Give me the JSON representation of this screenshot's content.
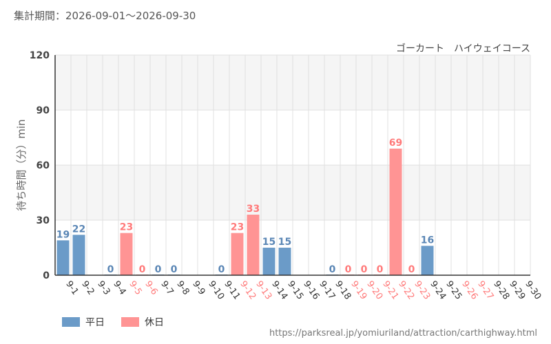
{
  "header": {
    "period": "集計期間：2026-09-01～2026-09-30",
    "attraction": "ゴーカート　ハイウェイコース"
  },
  "footer": {
    "source_url": "https://parksreal.jp/yomiuriland/attraction/carthighway.html"
  },
  "colors": {
    "weekday": "#6b9bc8",
    "holiday": "#ff9494",
    "weekday_label": "#5a86b5",
    "holiday_label": "#ff7a7a",
    "grid": "#e0e0e0",
    "band": "#f5f5f5"
  },
  "chart_data": {
    "type": "bar",
    "ylabel": "待ち時間（分）min",
    "ylim": [
      0,
      120
    ],
    "yticks": [
      0,
      30,
      60,
      90,
      120
    ],
    "grid": true,
    "legend_position": "bottom-left",
    "categories": [
      "9-1",
      "9-2",
      "9-3",
      "9-4",
      "9-5",
      "9-6",
      "9-7",
      "9-8",
      "9-9",
      "9-10",
      "9-11",
      "9-12",
      "9-13",
      "9-14",
      "9-15",
      "9-16",
      "9-17",
      "9-18",
      "9-19",
      "9-20",
      "9-21",
      "9-22",
      "9-23",
      "9-24",
      "9-25",
      "9-26",
      "9-27",
      "9-28",
      "9-29",
      "9-30"
    ],
    "day_type": [
      "weekday",
      "weekday",
      "weekday",
      "weekday",
      "holiday",
      "holiday",
      "weekday",
      "weekday",
      "weekday",
      "weekday",
      "weekday",
      "holiday",
      "holiday",
      "weekday",
      "weekday",
      "weekday",
      "weekday",
      "weekday",
      "holiday",
      "holiday",
      "holiday",
      "holiday",
      "holiday",
      "weekday",
      "weekday",
      "holiday",
      "holiday",
      "weekday",
      "weekday",
      "weekday"
    ],
    "values": [
      19,
      22,
      null,
      0,
      23,
      0,
      0,
      0,
      null,
      null,
      0,
      23,
      33,
      15,
      15,
      null,
      null,
      0,
      0,
      0,
      0,
      69,
      0,
      16,
      null,
      null,
      null,
      null,
      null,
      null
    ],
    "series": [
      {
        "name": "平日"
      },
      {
        "name": "休日"
      }
    ]
  }
}
